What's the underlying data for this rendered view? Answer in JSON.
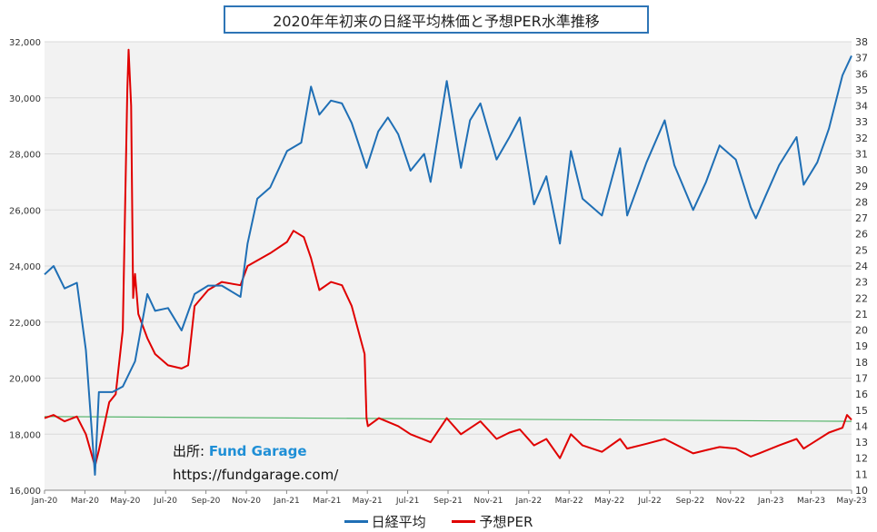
{
  "chart_data": {
    "type": "line",
    "title": "2020年年初来の日経平均株価と予想PER水準推移",
    "x_ticks": [
      "Jan-20",
      "Mar-20",
      "May-20",
      "Jul-20",
      "Sep-20",
      "Nov-20",
      "Jan-21",
      "Mar-21",
      "May-21",
      "Jul-21",
      "Sep-21",
      "Nov-21",
      "Jan-22",
      "Mar-22",
      "May-22",
      "Jul-22",
      "Sep-22",
      "Nov-22",
      "Jan-23",
      "Mar-23",
      "May-23"
    ],
    "y_left": {
      "range": [
        16000,
        32000
      ],
      "ticks": [
        "16,000",
        "18,000",
        "20,000",
        "22,000",
        "24,000",
        "26,000",
        "28,000",
        "30,000",
        "32,000"
      ]
    },
    "y_right": {
      "range": [
        10,
        38
      ],
      "ticks": [
        "10",
        "11",
        "12",
        "13",
        "14",
        "15",
        "16",
        "17",
        "18",
        "19",
        "20",
        "21",
        "22",
        "23",
        "24",
        "25",
        "26",
        "27",
        "28",
        "29",
        "30",
        "31",
        "32",
        "33",
        "34",
        "35",
        "36",
        "37",
        "38"
      ]
    },
    "grid": "horizontal",
    "legend_position": "bottom",
    "series": [
      {
        "name": "日経平均",
        "axis": "left",
        "color": "#1f6fb5",
        "points": [
          [
            "2020-01-01",
            23700
          ],
          [
            "2020-01-15",
            24000
          ],
          [
            "2020-02-01",
            23200
          ],
          [
            "2020-02-20",
            23400
          ],
          [
            "2020-03-05",
            21000
          ],
          [
            "2020-03-19",
            16550
          ],
          [
            "2020-03-25",
            19500
          ],
          [
            "2020-04-15",
            19500
          ],
          [
            "2020-05-01",
            19700
          ],
          [
            "2020-05-20",
            20600
          ],
          [
            "2020-06-08",
            23000
          ],
          [
            "2020-06-20",
            22400
          ],
          [
            "2020-07-10",
            22500
          ],
          [
            "2020-07-31",
            21700
          ],
          [
            "2020-08-20",
            23000
          ],
          [
            "2020-09-10",
            23300
          ],
          [
            "2020-10-01",
            23300
          ],
          [
            "2020-10-30",
            22900
          ],
          [
            "2020-11-10",
            24800
          ],
          [
            "2020-11-25",
            26400
          ],
          [
            "2020-12-15",
            26800
          ],
          [
            "2021-01-10",
            28100
          ],
          [
            "2021-02-01",
            28400
          ],
          [
            "2021-02-16",
            30400
          ],
          [
            "2021-03-01",
            29400
          ],
          [
            "2021-03-19",
            29900
          ],
          [
            "2021-04-05",
            29800
          ],
          [
            "2021-04-20",
            29100
          ],
          [
            "2021-05-13",
            27500
          ],
          [
            "2021-05-31",
            28800
          ],
          [
            "2021-06-15",
            29300
          ],
          [
            "2021-07-01",
            28700
          ],
          [
            "2021-07-20",
            27400
          ],
          [
            "2021-08-10",
            28000
          ],
          [
            "2021-08-20",
            27000
          ],
          [
            "2021-09-14",
            30600
          ],
          [
            "2021-10-06",
            27500
          ],
          [
            "2021-10-20",
            29200
          ],
          [
            "2021-11-05",
            29800
          ],
          [
            "2021-11-30",
            27800
          ],
          [
            "2021-12-20",
            28600
          ],
          [
            "2022-01-05",
            29300
          ],
          [
            "2022-01-27",
            26200
          ],
          [
            "2022-02-15",
            27200
          ],
          [
            "2022-03-08",
            24800
          ],
          [
            "2022-03-25",
            28100
          ],
          [
            "2022-04-12",
            26400
          ],
          [
            "2022-05-12",
            25800
          ],
          [
            "2022-06-09",
            28200
          ],
          [
            "2022-06-20",
            25800
          ],
          [
            "2022-07-20",
            27700
          ],
          [
            "2022-08-17",
            29200
          ],
          [
            "2022-09-01",
            27600
          ],
          [
            "2022-09-30",
            26000
          ],
          [
            "2022-10-20",
            27000
          ],
          [
            "2022-11-10",
            28300
          ],
          [
            "2022-12-05",
            27800
          ],
          [
            "2022-12-28",
            26100
          ],
          [
            "2023-01-05",
            25700
          ],
          [
            "2023-01-20",
            26500
          ],
          [
            "2023-02-10",
            27600
          ],
          [
            "2023-03-09",
            28600
          ],
          [
            "2023-03-20",
            26900
          ],
          [
            "2023-04-10",
            27700
          ],
          [
            "2023-04-28",
            28900
          ],
          [
            "2023-05-19",
            30800
          ],
          [
            "2023-06-02",
            31500
          ]
        ]
      },
      {
        "name": "予想PER",
        "axis": "right",
        "color": "#e00000",
        "points": [
          [
            "2020-01-01",
            14.5
          ],
          [
            "2020-01-15",
            14.7
          ],
          [
            "2020-02-01",
            14.3
          ],
          [
            "2020-02-20",
            14.6
          ],
          [
            "2020-03-05",
            13.5
          ],
          [
            "2020-03-19",
            11.5
          ],
          [
            "2020-03-25",
            12.5
          ],
          [
            "2020-04-10",
            15.5
          ],
          [
            "2020-04-20",
            16.0
          ],
          [
            "2020-05-01",
            20.0
          ],
          [
            "2020-05-08",
            35.0
          ],
          [
            "2020-05-10",
            37.5
          ],
          [
            "2020-05-14",
            34.0
          ],
          [
            "2020-05-17",
            22.0
          ],
          [
            "2020-05-20",
            23.5
          ],
          [
            "2020-05-25",
            21.0
          ],
          [
            "2020-06-08",
            19.5
          ],
          [
            "2020-06-20",
            18.5
          ],
          [
            "2020-07-10",
            17.8
          ],
          [
            "2020-07-31",
            17.6
          ],
          [
            "2020-08-10",
            17.8
          ],
          [
            "2020-08-20",
            21.5
          ],
          [
            "2020-09-10",
            22.5
          ],
          [
            "2020-10-01",
            23.0
          ],
          [
            "2020-10-30",
            22.8
          ],
          [
            "2020-11-10",
            24.0
          ],
          [
            "2020-12-15",
            24.8
          ],
          [
            "2021-01-10",
            25.5
          ],
          [
            "2021-01-20",
            26.2
          ],
          [
            "2021-02-05",
            25.8
          ],
          [
            "2021-02-16",
            24.5
          ],
          [
            "2021-03-01",
            22.5
          ],
          [
            "2021-03-19",
            23.0
          ],
          [
            "2021-04-05",
            22.8
          ],
          [
            "2021-04-20",
            21.5
          ],
          [
            "2021-05-10",
            18.5
          ],
          [
            "2021-05-13",
            14.5
          ],
          [
            "2021-05-15",
            14.0
          ],
          [
            "2021-06-01",
            14.5
          ],
          [
            "2021-07-01",
            14.0
          ],
          [
            "2021-07-20",
            13.5
          ],
          [
            "2021-08-20",
            13.0
          ],
          [
            "2021-09-14",
            14.5
          ],
          [
            "2021-10-06",
            13.5
          ],
          [
            "2021-11-05",
            14.3
          ],
          [
            "2021-11-30",
            13.2
          ],
          [
            "2021-12-20",
            13.6
          ],
          [
            "2022-01-05",
            13.8
          ],
          [
            "2022-01-27",
            12.8
          ],
          [
            "2022-02-15",
            13.2
          ],
          [
            "2022-03-08",
            12.0
          ],
          [
            "2022-03-25",
            13.5
          ],
          [
            "2022-04-12",
            12.8
          ],
          [
            "2022-05-12",
            12.4
          ],
          [
            "2022-06-09",
            13.2
          ],
          [
            "2022-06-20",
            12.6
          ],
          [
            "2022-07-20",
            12.9
          ],
          [
            "2022-08-17",
            13.2
          ],
          [
            "2022-09-30",
            12.3
          ],
          [
            "2022-10-20",
            12.5
          ],
          [
            "2022-11-10",
            12.7
          ],
          [
            "2022-12-05",
            12.6
          ],
          [
            "2022-12-28",
            12.1
          ],
          [
            "2023-01-10",
            12.3
          ],
          [
            "2023-02-10",
            12.8
          ],
          [
            "2023-03-09",
            13.2
          ],
          [
            "2023-03-20",
            12.6
          ],
          [
            "2023-04-28",
            13.6
          ],
          [
            "2023-05-19",
            13.9
          ],
          [
            "2023-05-26",
            14.7
          ],
          [
            "2023-06-02",
            14.4
          ]
        ]
      },
      {
        "name": "",
        "axis": "right",
        "color": "#55b46a",
        "points": [
          [
            "2020-01-01",
            14.6
          ],
          [
            "2023-06-02",
            14.3
          ]
        ]
      }
    ]
  },
  "source": {
    "label": "出所: ",
    "brand": "Fund Garage",
    "url": "https://fundgarage.com/"
  },
  "legend": [
    {
      "label": "日経平均",
      "color": "#1f6fb5"
    },
    {
      "label": "予想PER",
      "color": "#e00000"
    }
  ]
}
